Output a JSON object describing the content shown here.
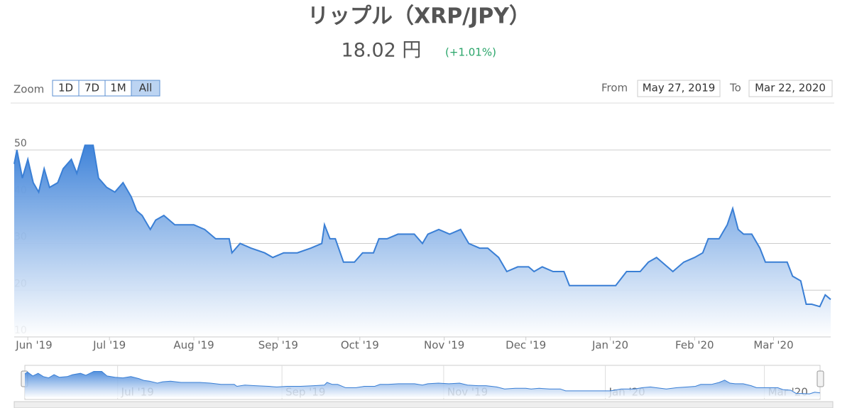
{
  "chart_data": {
    "type": "area",
    "title": "リップル（XRP/JPY）",
    "price": "18.02 円",
    "change": "(+1.01%)",
    "zoom_label": "Zoom",
    "zoom_buttons": [
      "1D",
      "7D",
      "1M",
      "All"
    ],
    "selected_zoom": "All",
    "from_label": "From",
    "from_date": "May 27, 2019",
    "to_label": "To",
    "to_date": "Mar 22, 2020",
    "color": "#3a7fd5",
    "x": [
      0,
      1,
      3,
      5,
      7,
      9,
      11,
      13,
      16,
      18,
      21,
      23,
      26,
      29,
      31,
      34,
      37,
      40,
      43,
      45,
      47,
      50,
      52,
      55,
      59,
      63,
      66,
      70,
      74,
      79,
      80,
      83,
      87,
      92,
      95,
      99,
      104,
      109,
      113,
      114,
      116,
      118,
      121,
      125,
      128,
      132,
      134,
      137,
      141,
      145,
      147,
      150,
      152,
      156,
      160,
      164,
      167,
      171,
      174,
      178,
      181,
      185,
      189,
      191,
      194,
      198,
      202,
      204,
      207,
      211,
      215,
      219,
      221,
      225,
      228,
      230,
      233,
      236,
      238,
      242,
      246,
      250,
      253,
      255,
      259,
      262,
      264,
      266,
      268,
      271,
      274,
      276,
      280,
      284,
      286,
      289,
      291,
      293,
      296,
      298,
      300
    ],
    "values": [
      47,
      50,
      44,
      48,
      43,
      41,
      46,
      42,
      43,
      46,
      48,
      45,
      51,
      51,
      44,
      42,
      41,
      43,
      40,
      37,
      36,
      33,
      35,
      36,
      34,
      34,
      34,
      33,
      31,
      31,
      28,
      30,
      29,
      28,
      27,
      28,
      28,
      29,
      30,
      34,
      31,
      31,
      26,
      26,
      28,
      28,
      31,
      31,
      32,
      32,
      32,
      30,
      32,
      33,
      32,
      33,
      30,
      29,
      29,
      27,
      24,
      25,
      25,
      24,
      25,
      24,
      24,
      21,
      21,
      21,
      21,
      21,
      21,
      24,
      24,
      24,
      26,
      27,
      26,
      24,
      26,
      27,
      28,
      31,
      31,
      34,
      37.5,
      33,
      32,
      32,
      29,
      26,
      26,
      26,
      23,
      22,
      17,
      17,
      16.5,
      19,
      18.02
    ],
    "xlim": [
      0,
      300
    ],
    "xticks": [
      {
        "value": 5,
        "label": "Jun '19"
      },
      {
        "value": 35,
        "label": "Jul '19"
      },
      {
        "value": 66,
        "label": "Aug '19"
      },
      {
        "value": 97,
        "label": "Sep '19"
      },
      {
        "value": 127,
        "label": "Oct '19"
      },
      {
        "value": 158,
        "label": "Nov '19"
      },
      {
        "value": 188,
        "label": "Dec '19"
      },
      {
        "value": 219,
        "label": "Jan '20"
      },
      {
        "value": 250,
        "label": "Feb '20"
      },
      {
        "value": 279,
        "label": "Mar '20"
      }
    ],
    "ylim": [
      10,
      57
    ],
    "yticks": [
      10,
      20,
      30,
      40,
      50
    ],
    "navigator_xticks": [
      {
        "value": 35,
        "label": "Jul '19"
      },
      {
        "value": 97,
        "label": "Sep '19"
      },
      {
        "value": 158,
        "label": "Nov '19"
      },
      {
        "value": 219,
        "label": "Jan '20"
      },
      {
        "value": 279,
        "label": "Mar '20"
      }
    ],
    "grid": true
  }
}
